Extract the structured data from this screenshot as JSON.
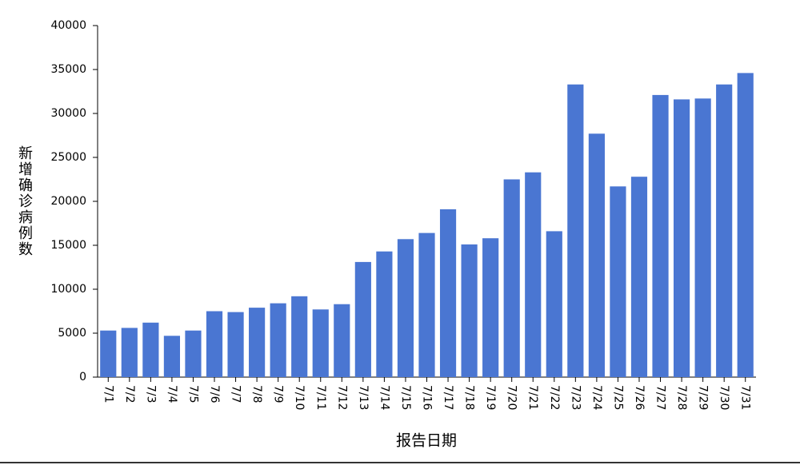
{
  "chart_data": {
    "type": "bar",
    "y_label": "新增确诊病例数",
    "x_label": "报告日期",
    "categories": [
      "7/1",
      "7/2",
      "7/3",
      "7/4",
      "7/5",
      "7/6",
      "7/7",
      "7/8",
      "7/9",
      "7/10",
      "7/11",
      "7/12",
      "7/13",
      "7/14",
      "7/15",
      "7/16",
      "7/17",
      "7/18",
      "7/19",
      "7/20",
      "7/21",
      "7/22",
      "7/23",
      "7/24",
      "7/25",
      "7/26",
      "7/27",
      "7/28",
      "7/29",
      "7/30",
      "7/31"
    ],
    "values": [
      5300,
      5600,
      6200,
      4700,
      5300,
      7500,
      7400,
      7900,
      8400,
      9200,
      7700,
      8300,
      13100,
      14300,
      15700,
      16400,
      19100,
      15100,
      15800,
      22500,
      23300,
      16600,
      33300,
      27700,
      21700,
      22800,
      32100,
      31600,
      31700,
      33300,
      34600
    ],
    "color": "#4a76d2",
    "ylim": [
      0,
      40000
    ],
    "yticks": [
      0,
      5000,
      10000,
      15000,
      20000,
      25000,
      30000,
      35000,
      40000
    ],
    "grid": false
  }
}
